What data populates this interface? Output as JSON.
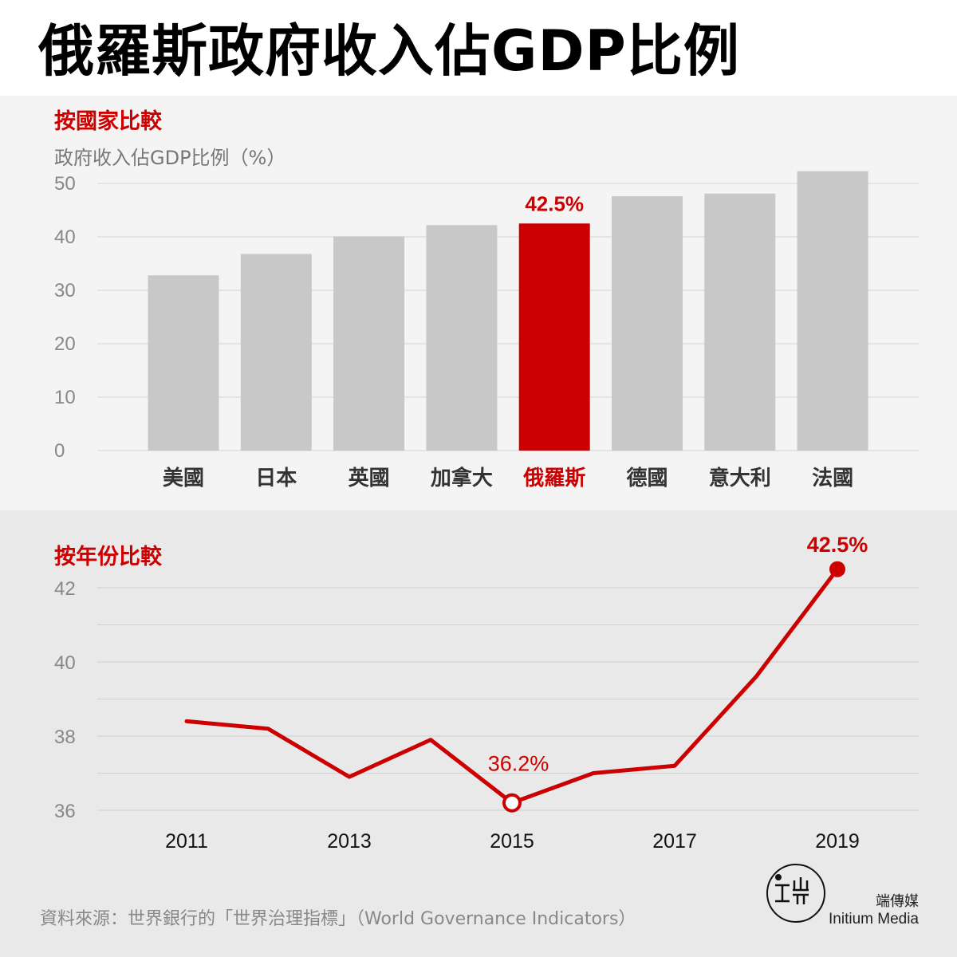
{
  "title": "俄羅斯政府收入佔GDP比例",
  "colors": {
    "highlight": "#cc0000",
    "bar": "#c8c8c8",
    "grid": "#d4d4d4",
    "tick": "#888888"
  },
  "chart_data": [
    {
      "type": "bar",
      "title": "按國家比較",
      "ylabel": "政府收入佔GDP比例（%）",
      "categories": [
        "美國",
        "日本",
        "英國",
        "加拿大",
        "俄羅斯",
        "德國",
        "意大利",
        "法國"
      ],
      "values": [
        32.8,
        36.8,
        40.1,
        42.2,
        42.5,
        47.6,
        48.1,
        52.3
      ],
      "highlight_index": 4,
      "highlight_label": "42.5%",
      "ylim": [
        0,
        50
      ],
      "yticks": [
        0,
        10,
        20,
        30,
        40,
        50
      ],
      "grid": true
    },
    {
      "type": "line",
      "title": "按年份比較",
      "x": [
        2011,
        2012,
        2013,
        2014,
        2015,
        2016,
        2017,
        2018,
        2019
      ],
      "values": [
        38.4,
        38.2,
        36.9,
        37.9,
        36.2,
        37.0,
        37.2,
        39.6,
        42.5
      ],
      "xticks": [
        "2011",
        "2013",
        "2015",
        "2017",
        "2019"
      ],
      "ylim": [
        36,
        42.5
      ],
      "yticks": [
        36,
        38,
        40,
        42
      ],
      "annotations": [
        {
          "x": 2015,
          "label": "36.2%",
          "marker": "open-circle"
        },
        {
          "x": 2019,
          "label": "42.5%",
          "marker": "filled-circle"
        }
      ],
      "grid": true
    }
  ],
  "source": "資料來源：世界銀行的「世界治理指標」（World Governance Indicators）",
  "brand": {
    "chinese": "端傳媒",
    "english": "Initium Media",
    "logo_icon": "initium-logo-icon"
  }
}
